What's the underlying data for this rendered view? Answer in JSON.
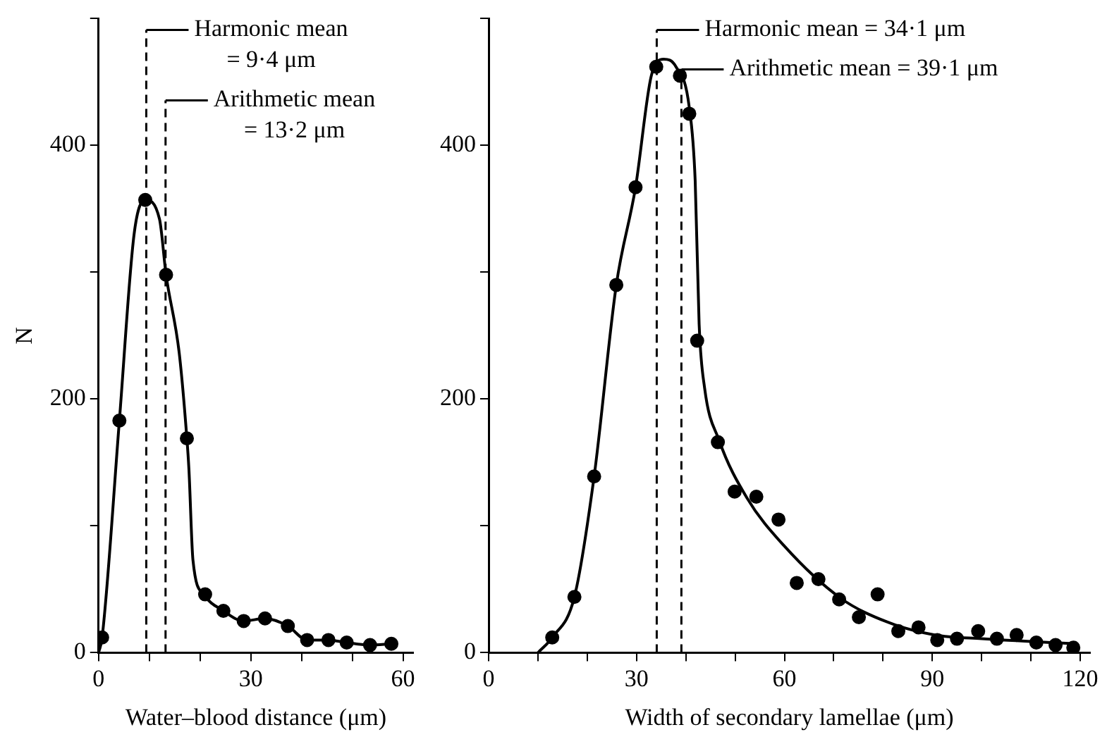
{
  "chart_data": [
    {
      "type": "line",
      "xlabel": "Water–blood distance (μm)",
      "ylabel": "N",
      "xlim": [
        0,
        62
      ],
      "xticks": [
        0,
        {
          "value": 10,
          "label": null
        },
        {
          "value": 20,
          "label": null
        },
        30,
        {
          "value": 40,
          "label": null
        },
        {
          "value": 50,
          "label": null
        },
        60
      ],
      "ylim": [
        0,
        500
      ],
      "yticks": [
        0,
        {
          "value": 100,
          "label": null
        },
        200,
        {
          "value": 300,
          "label": null
        },
        400,
        {
          "value": 500,
          "label": null
        }
      ],
      "grid": false,
      "legend": false,
      "series": [
        {
          "type": "line",
          "marker": "none",
          "color": "#000000",
          "x": [
            0,
            0.7,
            4.1,
            7,
            9.2,
            12,
            13.3,
            15.9,
            17.4,
            17.8,
            18.6,
            20.7,
            24.6,
            28.6,
            32.8,
            37.3,
            41.1,
            45.3,
            48.9,
            53.5,
            57.7
          ],
          "values": [
            0,
            12,
            183,
            330,
            357,
            342,
            298,
            236,
            169,
            145,
            73,
            46,
            33,
            25,
            27,
            21,
            10,
            10,
            8,
            6,
            7
          ]
        },
        {
          "type": "scatter",
          "marker": "circle",
          "color": "#000000",
          "x": [
            0.7,
            4.1,
            9.2,
            13.3,
            17.4,
            21,
            24.6,
            28.6,
            32.8,
            37.3,
            41.1,
            45.3,
            48.9,
            53.5,
            57.7
          ],
          "values": [
            12,
            183,
            357,
            298,
            169,
            46,
            33,
            25,
            27,
            21,
            10,
            10,
            8,
            6,
            7
          ]
        }
      ],
      "ref_lines": [
        {
          "axis": "x",
          "value": 9.4,
          "label": "Harmonic mean\n= 9·4 μm",
          "color": "#000000",
          "line_style": "dashed"
        },
        {
          "axis": "x",
          "value": 13.2,
          "label": "Arithmetic mean\n= 13·2 μm",
          "color": "#000000",
          "line_style": "dashed"
        }
      ]
    },
    {
      "type": "line",
      "xlabel": "Width of secondary lamellae (μm)",
      "xlim": [
        0,
        122
      ],
      "xticks": [
        0,
        {
          "value": 10,
          "label": null
        },
        {
          "value": 20,
          "label": null
        },
        30,
        {
          "value": 40,
          "label": null
        },
        {
          "value": 50,
          "label": null
        },
        60,
        {
          "value": 70,
          "label": null
        },
        {
          "value": 80,
          "label": null
        },
        90,
        {
          "value": 100,
          "label": null
        },
        {
          "value": 110,
          "label": null
        },
        120
      ],
      "ylim": [
        0,
        500
      ],
      "yticks": [
        0,
        {
          "value": 100,
          "label": null
        },
        200,
        {
          "value": 300,
          "label": null
        },
        400,
        {
          "value": 500,
          "label": null
        }
      ],
      "grid": false,
      "legend": false,
      "series": [
        {
          "type": "line",
          "marker": "none",
          "color": "#000000",
          "x": [
            10,
            12.9,
            17.4,
            21.4,
            25.9,
            29.8,
            33,
            35.5,
            38,
            40.7,
            41.9,
            42.7,
            43.8,
            46.7,
            52.4,
            60,
            71.4,
            81,
            90.5,
            100,
            119
          ],
          "values": [
            0,
            12,
            44,
            139,
            290,
            367,
            455,
            468,
            462,
            430,
            372,
            259,
            209,
            168,
            122,
            84,
            43,
            24,
            14,
            11,
            7
          ]
        },
        {
          "type": "scatter",
          "marker": "circle",
          "color": "#000000",
          "x": [
            12.9,
            17.4,
            21.4,
            25.9,
            29.8,
            34,
            38.8,
            40.7,
            42.3,
            46.5,
            49.9,
            54.3,
            58.8,
            62.5,
            66.9,
            71.1,
            75.1,
            78.9,
            83.1,
            87.2,
            91,
            95,
            99.3,
            103.1,
            107.1,
            111.1,
            115,
            118.6
          ],
          "values": [
            12,
            44,
            139,
            290,
            367,
            462,
            455,
            425,
            246,
            166,
            127,
            123,
            105,
            55,
            58,
            42,
            28,
            46,
            17,
            20,
            10,
            11,
            17,
            11,
            14,
            8,
            6,
            4
          ]
        }
      ],
      "ref_lines": [
        {
          "axis": "x",
          "value": 34.1,
          "label": "Harmonic mean = 34·1 μm",
          "color": "#000000",
          "line_style": "dashed"
        },
        {
          "axis": "x",
          "value": 39.1,
          "label": "Arithmetic mean = 39·1 μm",
          "color": "#000000",
          "line_style": "dashed"
        }
      ]
    }
  ]
}
